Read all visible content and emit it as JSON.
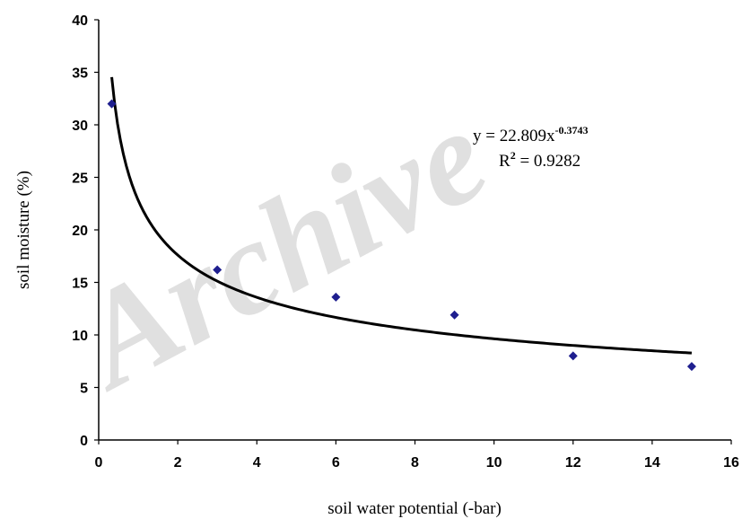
{
  "watermark": "Archive",
  "chart_data": {
    "type": "scatter",
    "xlabel": "soil water potential (-bar)",
    "ylabel": "soil moisture (%)",
    "xlim": [
      0,
      16
    ],
    "ylim": [
      0,
      40
    ],
    "x_ticks": [
      0,
      2,
      4,
      6,
      8,
      10,
      12,
      14,
      16
    ],
    "y_ticks": [
      0,
      5,
      10,
      15,
      20,
      25,
      30,
      35,
      40
    ],
    "grid": false,
    "points": [
      {
        "x": 0.33,
        "y": 32.0
      },
      {
        "x": 3,
        "y": 16.2
      },
      {
        "x": 6,
        "y": 13.6
      },
      {
        "x": 9,
        "y": 11.9
      },
      {
        "x": 12,
        "y": 8.0
      },
      {
        "x": 15,
        "y": 7.0
      }
    ],
    "trendline": {
      "type": "power",
      "a": 22.809,
      "b": -0.3743,
      "x_range": [
        0.33,
        15
      ]
    },
    "annotations": {
      "equation_prefix": "y = 22.809x",
      "equation_exponent": "-0.3743",
      "r2_prefix": "R",
      "r2_exponent": "2",
      "r2_suffix": " = 0.9282"
    },
    "colors": {
      "marker": "#1f1f8f",
      "trendline": "#000000"
    }
  }
}
